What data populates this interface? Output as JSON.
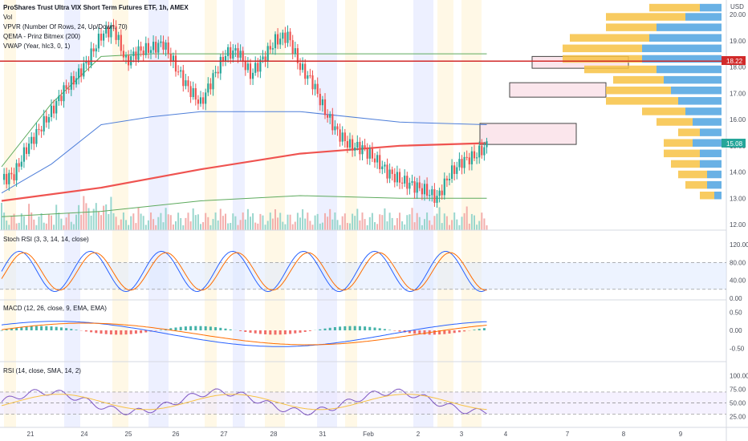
{
  "title": "ProShares Trust Ultra VIX Short Term Futures ETF, 1h, AMEX",
  "indicator_labels": [
    "Vol",
    "VPVR (Number Of Rows, 24, Up/Down, 70)",
    "QEMA - Prinz Bitmex (200)",
    "VWAP (Year, hlc3, 0, 1)"
  ],
  "currency": "USD",
  "last_price": "15.08",
  "highlight_price": "18.22",
  "colors": {
    "up": "#26a69a",
    "down": "#ef5350",
    "ema": "#ef5350",
    "vwap": "#4f7fd9",
    "band": "#5daa5d",
    "profile_up": "#4fa3e0",
    "profile_down": "#f7c244",
    "hline": "#d12a2a"
  },
  "price_axis": [
    "20.00",
    "19.00",
    "18.00",
    "17.00",
    "16.00",
    "15.00",
    "14.00",
    "13.00",
    "12.00"
  ],
  "x_labels": [
    "21",
    "24",
    "25",
    "26",
    "27",
    "28",
    "31",
    "Feb",
    "2",
    "3",
    "4",
    "7",
    "8",
    "9"
  ],
  "panes": {
    "stoch": {
      "label": "Stoch RSI (3, 3, 14, 14, close)",
      "ticks": [
        "120.00",
        "80.00",
        "40.00",
        "0.00"
      ]
    },
    "macd": {
      "label": "MACD (12, 26, close, 9, EMA, EMA)",
      "ticks": [
        "0.50",
        "0.00",
        "-0.50"
      ]
    },
    "rsi": {
      "label": "RSI (14, close, SMA, 14, 2)",
      "ticks": [
        "100.00",
        "75.00",
        "50.00",
        "25.00"
      ]
    }
  },
  "chart_data": {
    "type": "candlestick",
    "title": "ProShares Trust Ultra VIX Short Term Futures ETF, 1h, AMEX",
    "ylim": [
      12,
      20.5
    ],
    "x_range": [
      "21",
      "9"
    ],
    "price_series_description": "hourly candles",
    "close_path": [
      [
        0,
        13.7
      ],
      [
        5,
        13.9
      ],
      [
        10,
        14.9
      ],
      [
        15,
        15.6
      ],
      [
        20,
        16.3
      ],
      [
        25,
        17.1
      ],
      [
        30,
        17.6
      ],
      [
        35,
        18.3
      ],
      [
        40,
        19.2
      ],
      [
        45,
        19.5
      ],
      [
        50,
        18.2
      ],
      [
        55,
        18.6
      ],
      [
        60,
        18.7
      ],
      [
        65,
        18.9
      ],
      [
        70,
        18.0
      ],
      [
        75,
        17.2
      ],
      [
        80,
        16.6
      ],
      [
        85,
        17.6
      ],
      [
        90,
        18.5
      ],
      [
        95,
        18.6
      ],
      [
        100,
        17.7
      ],
      [
        105,
        18.3
      ],
      [
        110,
        19.0
      ],
      [
        115,
        19.2
      ],
      [
        120,
        18.0
      ],
      [
        125,
        17.4
      ],
      [
        130,
        16.3
      ],
      [
        135,
        15.5
      ],
      [
        140,
        15.0
      ],
      [
        145,
        14.9
      ],
      [
        150,
        14.5
      ],
      [
        155,
        14.0
      ],
      [
        160,
        13.7
      ],
      [
        165,
        13.5
      ],
      [
        170,
        13.3
      ],
      [
        175,
        13.0
      ],
      [
        180,
        13.9
      ],
      [
        185,
        14.4
      ],
      [
        190,
        14.6
      ],
      [
        195,
        15.0
      ]
    ],
    "ema_200": [
      [
        0,
        12.9
      ],
      [
        40,
        13.4
      ],
      [
        80,
        14.1
      ],
      [
        120,
        14.7
      ],
      [
        160,
        15.0
      ],
      [
        195,
        15.1
      ]
    ],
    "vwap": [
      [
        0,
        13.2
      ],
      [
        20,
        14.3
      ],
      [
        40,
        15.8
      ],
      [
        60,
        16.1
      ],
      [
        80,
        16.3
      ],
      [
        120,
        16.3
      ],
      [
        160,
        15.9
      ],
      [
        195,
        15.8
      ]
    ],
    "upper_band": [
      [
        0,
        14.2
      ],
      [
        20,
        16.6
      ],
      [
        40,
        18.4
      ],
      [
        60,
        18.5
      ],
      [
        100,
        18.5
      ],
      [
        150,
        18.5
      ],
      [
        195,
        18.5
      ]
    ],
    "lower_band": [
      [
        0,
        12.3
      ],
      [
        40,
        12.5
      ],
      [
        80,
        12.9
      ],
      [
        120,
        13.1
      ],
      [
        160,
        13.0
      ],
      [
        195,
        13.0
      ]
    ],
    "volume_profile": [
      {
        "price": 20.25,
        "up": 0.15,
        "down": 0.35
      },
      {
        "price": 19.9,
        "up": 0.25,
        "down": 0.55
      },
      {
        "price": 19.5,
        "up": 0.45,
        "down": 0.35
      },
      {
        "price": 19.1,
        "up": 0.5,
        "down": 0.55
      },
      {
        "price": 18.7,
        "up": 0.55,
        "down": 0.55
      },
      {
        "price": 18.3,
        "up": 0.55,
        "down": 0.55
      },
      {
        "price": 17.9,
        "up": 0.45,
        "down": 0.5
      },
      {
        "price": 17.5,
        "up": 0.4,
        "down": 0.35
      },
      {
        "price": 17.1,
        "up": 0.35,
        "down": 0.45
      },
      {
        "price": 16.7,
        "up": 0.3,
        "down": 0.5
      },
      {
        "price": 16.3,
        "up": 0.25,
        "down": 0.3
      },
      {
        "price": 15.9,
        "up": 0.2,
        "down": 0.25
      },
      {
        "price": 15.5,
        "up": 0.15,
        "down": 0.15
      },
      {
        "price": 15.1,
        "up": 0.2,
        "down": 0.2
      },
      {
        "price": 14.7,
        "up": 0.15,
        "down": 0.25
      },
      {
        "price": 14.3,
        "up": 0.15,
        "down": 0.2
      },
      {
        "price": 13.9,
        "up": 0.1,
        "down": 0.2
      },
      {
        "price": 13.5,
        "up": 0.1,
        "down": 0.15
      },
      {
        "price": 13.1,
        "up": 0.05,
        "down": 0.1
      }
    ],
    "zones": [
      {
        "low": 17.95,
        "high": 18.4
      },
      {
        "low": 16.85,
        "high": 17.4
      },
      {
        "low": 15.05,
        "high": 15.85
      }
    ]
  }
}
